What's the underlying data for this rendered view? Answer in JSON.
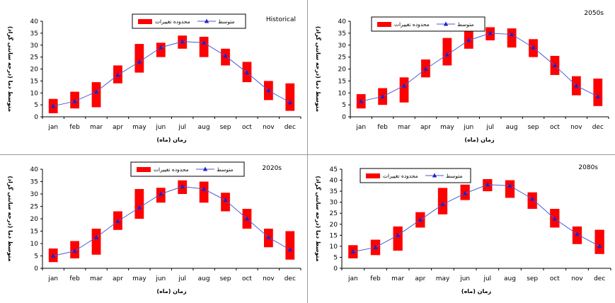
{
  "chart_data": [
    {
      "type": "bar",
      "title": "Historical",
      "xlabel": "زمان (ماه)",
      "ylabel": "متوسط دما (درجه سانتی گراد)",
      "legend": {
        "range_label": "محدوده تغییرات",
        "mean_label": "متوسط",
        "placement": "top-center"
      },
      "categories": [
        "jan",
        "feb",
        "mar",
        "apr",
        "may",
        "jun",
        "jul",
        "aug",
        "sep",
        "oct",
        "nov",
        "dec"
      ],
      "ylim": [
        0,
        40
      ],
      "yticks": [
        0,
        5,
        10,
        15,
        20,
        25,
        30,
        35,
        40
      ],
      "series": [
        {
          "name": "محدوده تغییرات",
          "kind": "range",
          "low": [
            1.5,
            3.5,
            4,
            14,
            18.5,
            25,
            28.5,
            25,
            21.5,
            14.5,
            7,
            2.5
          ],
          "high": [
            7.5,
            10.5,
            14.5,
            21.5,
            30.5,
            31,
            34,
            33.5,
            28.5,
            23,
            15,
            14
          ]
        },
        {
          "name": "متوسط",
          "kind": "line",
          "values": [
            4.5,
            6.5,
            10.5,
            17.5,
            23,
            29,
            31.5,
            31,
            25.5,
            18.5,
            11,
            6
          ]
        }
      ]
    },
    {
      "type": "bar",
      "title": "2050s",
      "xlabel": "زمان (ماه)",
      "ylabel": "متوسط دما (درجه سانتی گراد)",
      "legend": {
        "range_label": "محدوده تغییرات",
        "mean_label": "متوسط",
        "placement": "top-left"
      },
      "categories": [
        "jan",
        "feb",
        "mar",
        "apr",
        "may",
        "jun",
        "jul",
        "aug",
        "sep",
        "oct",
        "nov",
        "dec"
      ],
      "ylim": [
        0,
        40
      ],
      "yticks": [
        0,
        5,
        10,
        15,
        20,
        25,
        30,
        35,
        40
      ],
      "series": [
        {
          "name": "محدوده تغییرات",
          "kind": "range",
          "low": [
            3.5,
            5,
            6,
            16.5,
            21.5,
            28.5,
            32,
            29,
            25,
            17.5,
            9,
            4.5
          ],
          "high": [
            9.5,
            12,
            16.5,
            24,
            33,
            36,
            37.5,
            37,
            32.5,
            25.5,
            17,
            16
          ]
        },
        {
          "name": "متوسط",
          "kind": "line",
          "values": [
            6.5,
            8.5,
            13,
            20,
            26,
            32,
            35,
            34.5,
            29,
            21.5,
            13,
            8.5
          ]
        }
      ]
    },
    {
      "type": "bar",
      "title": "2020s",
      "xlabel": "زمان (ماه)",
      "ylabel": "متوسط دما (درجه سانتی گراد)",
      "legend": {
        "range_label": "محدوده تغییرات",
        "mean_label": "متوسط",
        "placement": "top-center"
      },
      "categories": [
        "jan",
        "feb",
        "mar",
        "apr",
        "may",
        "jun",
        "jul",
        "aug",
        "sep",
        "oct",
        "nov",
        "dec"
      ],
      "ylim": [
        0,
        40
      ],
      "yticks": [
        0,
        5,
        10,
        15,
        20,
        25,
        30,
        35,
        40
      ],
      "series": [
        {
          "name": "محدوده تغییرات",
          "kind": "range",
          "low": [
            2.5,
            4,
            5.5,
            15.5,
            20,
            26.5,
            30,
            26.5,
            23,
            16,
            8.5,
            3.5
          ],
          "high": [
            8,
            11,
            16,
            23,
            32,
            32.5,
            35.5,
            35,
            30.5,
            24,
            16,
            15
          ]
        },
        {
          "name": "متوسط",
          "kind": "line",
          "values": [
            5,
            7,
            12.5,
            19,
            24.5,
            30,
            33,
            32,
            27.5,
            20,
            12.5,
            7.5
          ]
        }
      ]
    },
    {
      "type": "bar",
      "title": "2080s",
      "xlabel": "زمان (ماه)",
      "ylabel": "متوسط دما (درجه سانتی گراد)",
      "legend": {
        "range_label": "محدوده تغییرات",
        "mean_label": "متوسط",
        "placement": "top-left"
      },
      "categories": [
        "jan",
        "feb",
        "mar",
        "apr",
        "may",
        "jun",
        "jul",
        "aug",
        "sep",
        "oct",
        "nov",
        "dec"
      ],
      "ylim": [
        0,
        45
      ],
      "yticks": [
        0,
        5,
        10,
        15,
        20,
        25,
        30,
        35,
        40,
        45
      ],
      "series": [
        {
          "name": "محدوده تغییرات",
          "kind": "range",
          "low": [
            4.5,
            6,
            8,
            18.5,
            24.5,
            31,
            35,
            32,
            27,
            18.5,
            11,
            6.5
          ],
          "high": [
            10.5,
            13,
            19,
            25.5,
            36.5,
            38,
            40.5,
            40,
            34.5,
            27,
            19,
            17.5
          ]
        },
        {
          "name": "متوسط",
          "kind": "line",
          "values": [
            7.5,
            9.5,
            15,
            22,
            29,
            34,
            38,
            37.5,
            31.5,
            22.5,
            15.5,
            10
          ]
        }
      ]
    }
  ],
  "colors": {
    "range_fill": "#ff0000",
    "mean_line": "#4a5bd4",
    "mean_marker": "#2222cc",
    "axis": "#000000"
  }
}
